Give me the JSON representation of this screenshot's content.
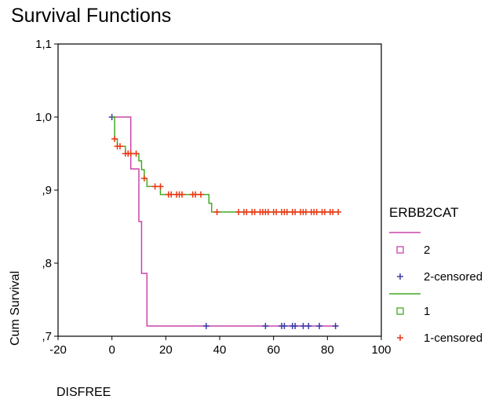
{
  "chart_data": {
    "type": "line",
    "title": "Survival Functions",
    "xlabel": "DISFREE",
    "ylabel": "Cum Survival",
    "xlim": [
      -20,
      100
    ],
    "ylim": [
      0.7,
      1.1
    ],
    "x_ticks": [
      -20,
      0,
      20,
      40,
      60,
      80,
      100
    ],
    "x_tick_labels": [
      "-20",
      "0",
      "20",
      "40",
      "60",
      "80",
      "100"
    ],
    "y_ticks": [
      0.7,
      0.8,
      0.9,
      1.0,
      1.1
    ],
    "y_tick_labels": [
      ",7",
      ",8",
      ",9",
      "1,0",
      "1,1"
    ],
    "grid": false,
    "legend_placement": "right",
    "legend": {
      "title": "ERBB2CAT",
      "entries": [
        {
          "label": "2",
          "color": "#cc44aa",
          "kind": "line"
        },
        {
          "label": "2",
          "color": "#cc44aa",
          "kind": "square"
        },
        {
          "label": "2-censored",
          "color": "#3a3aa8",
          "kind": "plus"
        },
        {
          "label": "1",
          "color": "#44aa22",
          "kind": "line"
        },
        {
          "label": "1",
          "color": "#44aa22",
          "kind": "square"
        },
        {
          "label": "1-censored",
          "color": "#ee3311",
          "kind": "plus"
        }
      ]
    },
    "series": [
      {
        "name": "2",
        "color": "#cc44aa",
        "step_x": [
          0,
          6,
          7,
          10,
          11,
          13,
          84
        ],
        "step_y": [
          1.0,
          1.0,
          0.929,
          0.857,
          0.786,
          0.714,
          0.714
        ],
        "censored_color": "#3a3aa8",
        "censored_x": [
          0,
          35,
          57,
          63,
          64,
          67,
          68,
          71,
          73,
          77,
          83
        ],
        "censored_y": [
          1.0,
          0.714,
          0.714,
          0.714,
          0.714,
          0.714,
          0.714,
          0.714,
          0.714,
          0.714,
          0.714
        ]
      },
      {
        "name": "1",
        "color": "#44aa22",
        "step_x": [
          0,
          1,
          2,
          5,
          10,
          11,
          12,
          13,
          18,
          20,
          36,
          37,
          84
        ],
        "step_y": [
          1.0,
          0.97,
          0.96,
          0.95,
          0.94,
          0.928,
          0.916,
          0.905,
          0.894,
          0.894,
          0.882,
          0.87,
          0.87
        ],
        "censored_color": "#ee3311",
        "censored_x": [
          1,
          2,
          3,
          5,
          6,
          7,
          9,
          12,
          16,
          18,
          21,
          22,
          24,
          25,
          26,
          30,
          31,
          33,
          39,
          47,
          49,
          50,
          52,
          53,
          55,
          56,
          57,
          58,
          60,
          61,
          63,
          64,
          65,
          67,
          68,
          70,
          71,
          72,
          74,
          75,
          76,
          78,
          79,
          81,
          82,
          84
        ],
        "censored_y": [
          0.97,
          0.96,
          0.96,
          0.95,
          0.95,
          0.95,
          0.95,
          0.916,
          0.905,
          0.905,
          0.894,
          0.894,
          0.894,
          0.894,
          0.894,
          0.894,
          0.894,
          0.894,
          0.87,
          0.87,
          0.87,
          0.87,
          0.87,
          0.87,
          0.87,
          0.87,
          0.87,
          0.87,
          0.87,
          0.87,
          0.87,
          0.87,
          0.87,
          0.87,
          0.87,
          0.87,
          0.87,
          0.87,
          0.87,
          0.87,
          0.87,
          0.87,
          0.87,
          0.87,
          0.87,
          0.87
        ]
      }
    ]
  }
}
